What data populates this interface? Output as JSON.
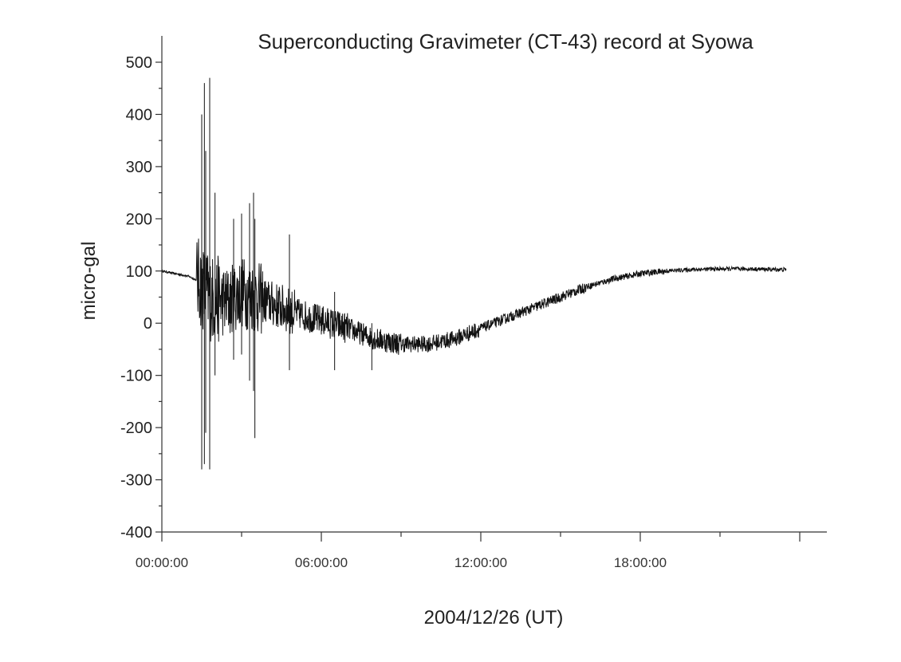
{
  "chart_data": {
    "type": "line",
    "title": "Superconducting Gravimeter (CT-43) record at Syowa",
    "xlabel": "2004/12/26 (UT)",
    "ylabel": "micro-gal",
    "ylim": [
      -400,
      500
    ],
    "y_ticks": [
      500,
      400,
      300,
      200,
      100,
      0,
      -100,
      -200,
      -300,
      -400
    ],
    "y_tick_labels": [
      "500",
      "400",
      "300",
      "200",
      "100",
      "0",
      "-100",
      "-200",
      "-300",
      "-400"
    ],
    "xlim_hours": [
      0,
      25
    ],
    "x_ticks_hours": [
      0,
      6,
      12,
      18
    ],
    "x_tick_labels": [
      "00:00:00",
      "06:00:00",
      "12:00:00",
      "18:00:00"
    ],
    "grid": false,
    "series": [
      {
        "envelope": [
          {
            "x": 0.0,
            "y": 100
          },
          {
            "x": 1.0,
            "y": 90
          },
          {
            "x": 1.4,
            "y": 80
          },
          {
            "x": 1.8,
            "y": 50
          },
          {
            "x": 2.5,
            "y": 40
          },
          {
            "x": 3.0,
            "y": 60
          },
          {
            "x": 3.5,
            "y": 50
          },
          {
            "x": 4.0,
            "y": 40
          },
          {
            "x": 5.0,
            "y": 20
          },
          {
            "x": 6.0,
            "y": 5
          },
          {
            "x": 7.0,
            "y": -10
          },
          {
            "x": 8.0,
            "y": -30
          },
          {
            "x": 9.0,
            "y": -40
          },
          {
            "x": 10.0,
            "y": -40
          },
          {
            "x": 11.0,
            "y": -30
          },
          {
            "x": 12.0,
            "y": -10
          },
          {
            "x": 13.0,
            "y": 10
          },
          {
            "x": 14.0,
            "y": 30
          },
          {
            "x": 15.0,
            "y": 50
          },
          {
            "x": 16.0,
            "y": 70
          },
          {
            "x": 17.0,
            "y": 85
          },
          {
            "x": 18.0,
            "y": 95
          },
          {
            "x": 19.0,
            "y": 100
          },
          {
            "x": 20.0,
            "y": 103
          },
          {
            "x": 21.0,
            "y": 104
          },
          {
            "x": 22.0,
            "y": 104
          },
          {
            "x": 23.0,
            "y": 103
          },
          {
            "x": 23.5,
            "y": 103
          }
        ],
        "spikes": [
          {
            "x": 1.5,
            "ymax": 400,
            "ymin": -280
          },
          {
            "x": 1.6,
            "ymax": 460,
            "ymin": -270
          },
          {
            "x": 1.65,
            "ymax": 330,
            "ymin": -210
          },
          {
            "x": 1.8,
            "ymax": 470,
            "ymin": -280
          },
          {
            "x": 2.0,
            "ymax": 250,
            "ymin": -100
          },
          {
            "x": 2.7,
            "ymax": 200,
            "ymin": -70
          },
          {
            "x": 3.0,
            "ymax": 210,
            "ymin": -60
          },
          {
            "x": 3.3,
            "ymax": 230,
            "ymin": -110
          },
          {
            "x": 3.45,
            "ymax": 250,
            "ymin": -130
          },
          {
            "x": 3.5,
            "ymax": 200,
            "ymin": -220
          },
          {
            "x": 4.8,
            "ymax": 170,
            "ymin": -90
          },
          {
            "x": 6.5,
            "ymax": 60,
            "ymin": -90
          },
          {
            "x": 7.9,
            "ymax": 0,
            "ymin": -90
          }
        ]
      }
    ]
  }
}
